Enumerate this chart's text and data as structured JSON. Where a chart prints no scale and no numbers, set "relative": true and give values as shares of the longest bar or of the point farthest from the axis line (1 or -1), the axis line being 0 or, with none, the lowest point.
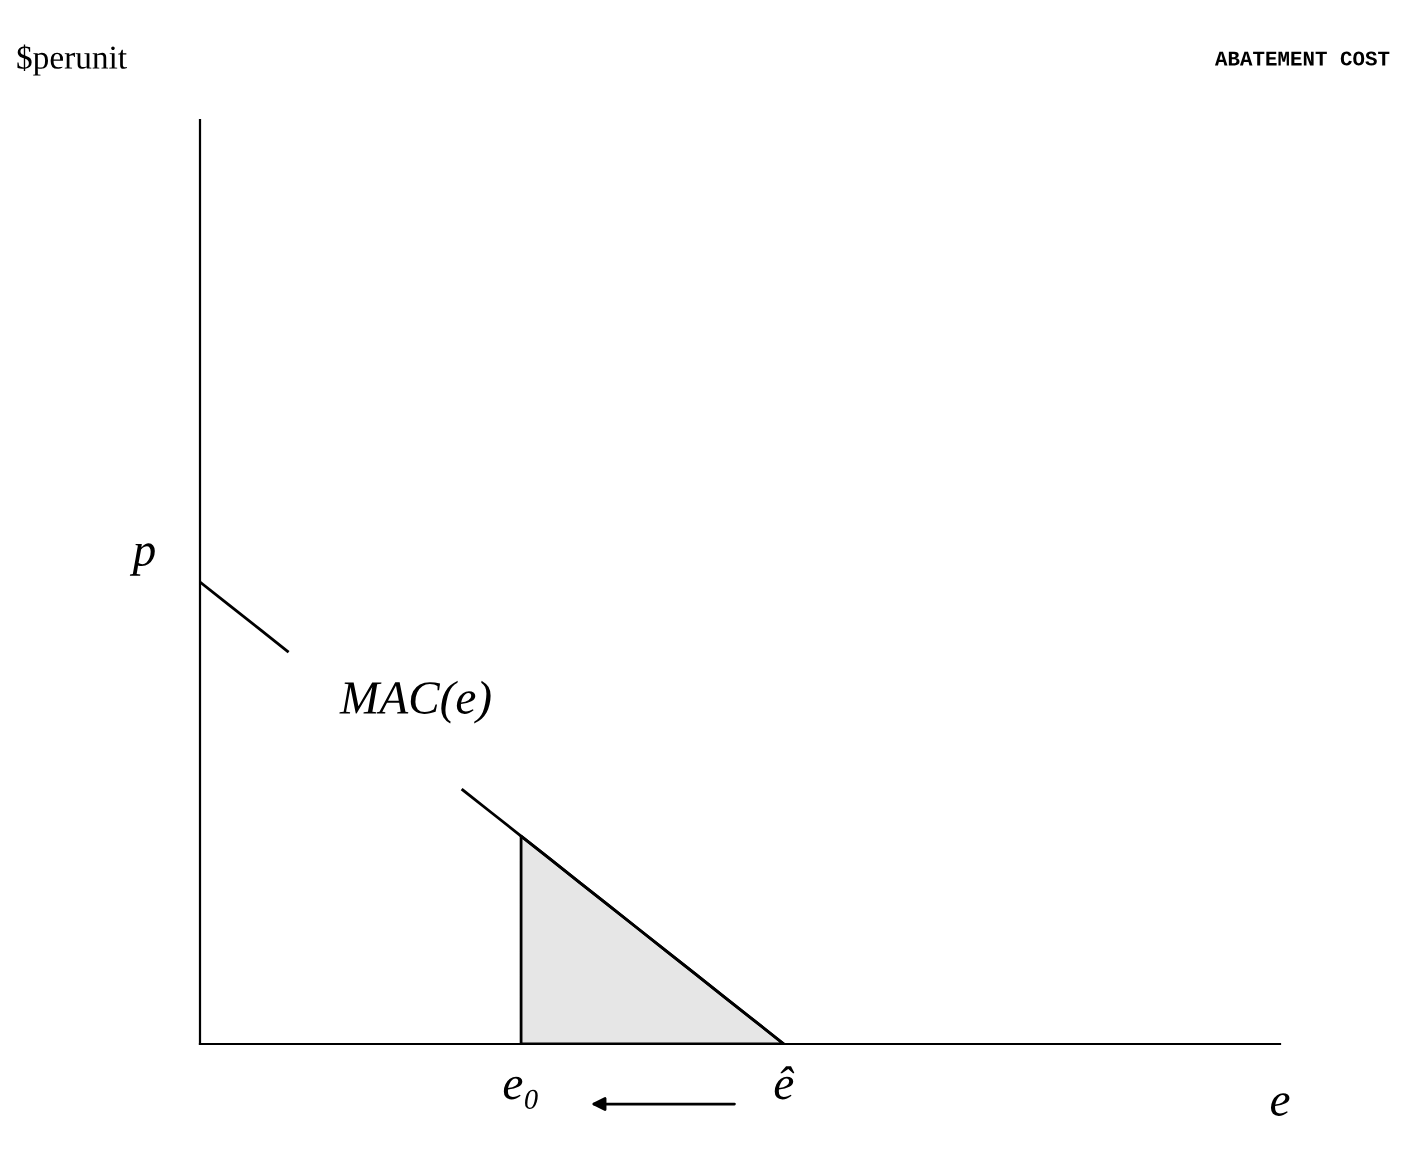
{
  "chart_data": {
    "type": "line",
    "relative": true,
    "title": "ABATEMENT COST",
    "xlabel": "e",
    "categories": [
      null,
      null,
      null,
      null,
      null,
      null,
      null,
      null,
      null,
      null,
      null,
      "e₀",
      null,
      null,
      null,
      null,
      null,
      null,
      null,
      null,
      "ê",
      null,
      null,
      null,
      null,
      null,
      null,
      null,
      null,
      null,
      null,
      null,
      null,
      null,
      null,
      null,
      null,
      null
    ],
    "series": [
      {
        "type": "area",
        "color": "#e6e6e6",
        "values": [
          null,
          null,
          null,
          null,
          null,
          null,
          null,
          null,
          null,
          null,
          null,
          0.45,
          0.4,
          0.35,
          0.3,
          0.25,
          0.2,
          0.15,
          0.1,
          0.05,
          0,
          null,
          null,
          null,
          null,
          null,
          null,
          null,
          null,
          null,
          null,
          null,
          null,
          null,
          null,
          null,
          null,
          null
        ]
      },
      {
        "color": "#000000",
        "values": [
          1,
          0.95,
          0.9,
          0.85,
          null,
          null,
          null,
          null,
          null,
          0.55,
          0.5,
          0.45,
          0.4,
          0.35,
          0.3,
          0.25,
          0.2,
          0.15,
          0.1,
          0.05,
          0,
          null,
          null,
          null,
          null,
          null,
          null,
          null,
          null,
          null,
          null,
          null,
          null,
          null,
          null,
          null,
          null,
          null
        ]
      }
    ],
    "annotations": [
      "p",
      "MAC(e)",
      "$perunit"
    ]
  }
}
